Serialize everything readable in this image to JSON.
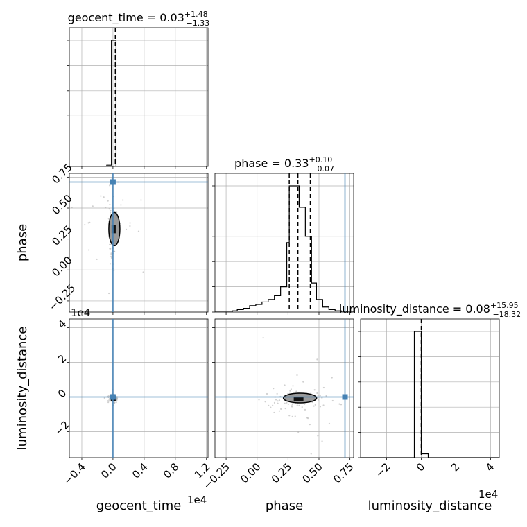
{
  "chart_data": {
    "type": "corner",
    "parameters": [
      "geocent_time",
      "phase",
      "luminosity_distance"
    ],
    "axis_labels": {
      "geocent_time": "geocent_time",
      "phase": "phase",
      "luminosity_distance": "luminosity_distance"
    },
    "titles": [
      {
        "param": "geocent_time",
        "text": "geocent_time = 0.03",
        "plus": "+1.48",
        "minus": "−1.33"
      },
      {
        "param": "phase",
        "text": "phase = 0.33",
        "plus": "+0.10",
        "minus": "−0.07"
      },
      {
        "param": "luminosity_distance",
        "text": "luminosity_distance = 0.08",
        "plus": "+15.95",
        "minus": "−18.32"
      }
    ],
    "ranges": {
      "geocent_time": [
        -0.56,
        1.22
      ],
      "phase": [
        -0.34,
        0.78
      ],
      "luminosity_distance": [
        -3.5,
        4.5
      ]
    },
    "tick_values": {
      "geocent_time": [
        -0.4,
        0.0,
        0.4,
        0.8,
        1.2
      ],
      "phase": [
        -0.25,
        0.0,
        0.25,
        0.5,
        0.75
      ],
      "luminosity_distance": [
        -2,
        0,
        2,
        4
      ]
    },
    "tick_labels": {
      "geocent_time": [
        "−0.4",
        "0.0",
        "0.4",
        "0.8",
        "1.2"
      ],
      "phase": [
        "−0.25",
        "0.00",
        "0.25",
        "0.50",
        "0.75"
      ],
      "luminosity_distance": [
        "−2",
        "0",
        "2",
        "4"
      ]
    },
    "offset_labels": {
      "geocent_time_x": "1e4",
      "luminosity_distance_y": "1e4",
      "luminosity_distance_x": "1e4"
    },
    "truths": {
      "geocent_time": 0.0,
      "phase": 0.71,
      "luminosity_distance": 0.0
    },
    "quantiles_dashed": {
      "geocent_time": [
        0.03
      ],
      "phase": [
        0.26,
        0.33,
        0.43
      ],
      "luminosity_distance": [
        0.0
      ]
    },
    "histograms": {
      "geocent_time": {
        "edges": [
          -0.56,
          -0.08,
          -0.02,
          0.04,
          1.22
        ],
        "values": [
          0.0,
          0.01,
          1.0,
          0.0
        ]
      },
      "phase": {
        "edges": [
          -0.34,
          -0.2,
          -0.16,
          -0.11,
          -0.06,
          -0.01,
          0.04,
          0.09,
          0.14,
          0.19,
          0.24,
          0.26,
          0.29,
          0.34,
          0.39,
          0.44,
          0.48,
          0.53,
          0.58,
          0.63,
          0.68,
          0.73,
          0.78
        ],
        "values": [
          0.0,
          0.01,
          0.02,
          0.03,
          0.05,
          0.06,
          0.08,
          0.1,
          0.13,
          0.2,
          0.55,
          1.0,
          1.0,
          0.83,
          0.6,
          0.23,
          0.1,
          0.04,
          0.02,
          0.01,
          0.0,
          0.0
        ]
      },
      "luminosity_distance": {
        "edges": [
          -3.5,
          -0.4,
          0.0,
          0.4,
          4.5
        ],
        "values": [
          0.0,
          1.0,
          0.03,
          0.0
        ]
      }
    },
    "grid": true,
    "legend": "none"
  }
}
